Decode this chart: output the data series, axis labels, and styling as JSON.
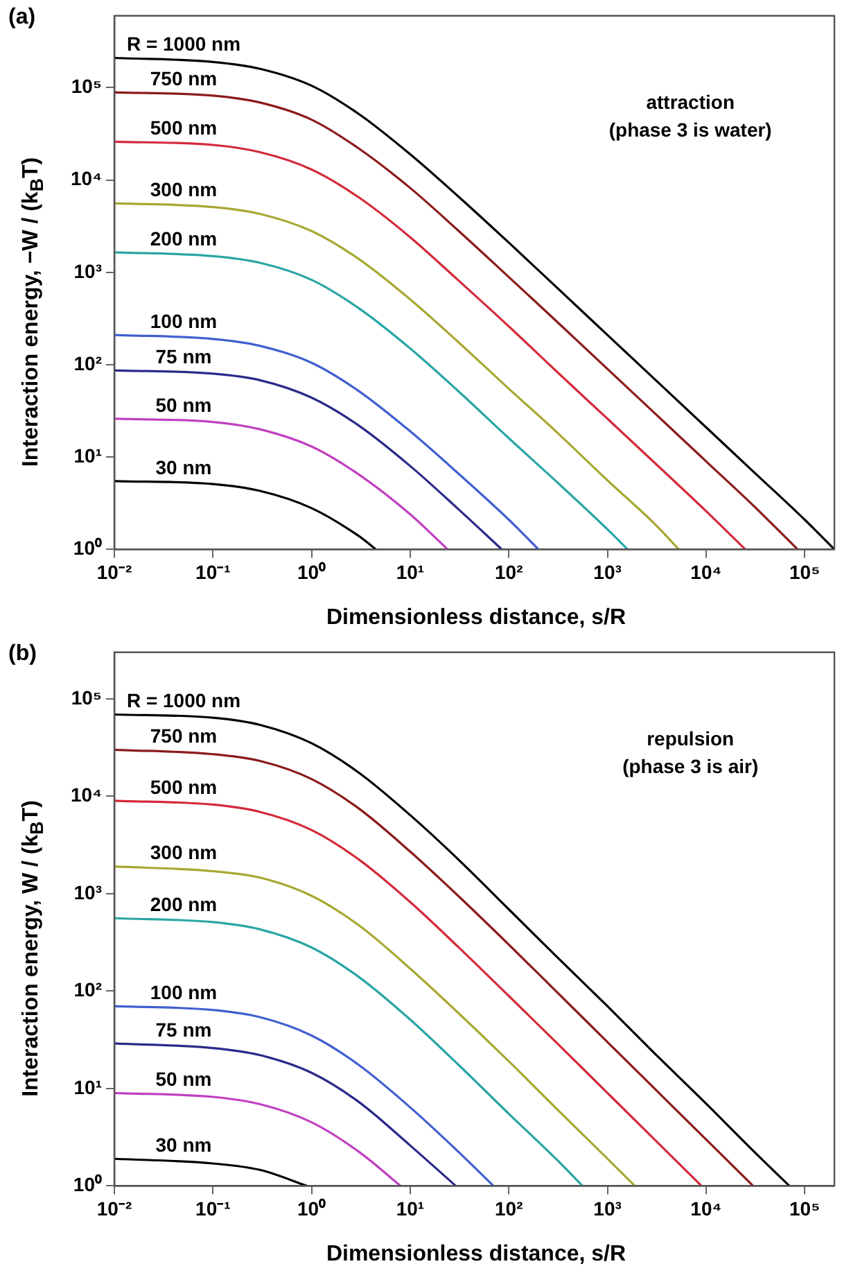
{
  "chart_data": [
    {
      "type": "line",
      "title": "(a)",
      "xlabel": "Dimensionless distance, s/R",
      "ylabel": "Interaction energy, −W / (k$_{B}$T)",
      "log": "xy",
      "xlim": [
        0.01,
        200000
      ],
      "ylim": [
        1,
        600000
      ],
      "xticks": [
        {
          "value": 0.01,
          "label": "10⁻²"
        },
        {
          "value": 0.1,
          "label": "10⁻¹"
        },
        {
          "value": 1,
          "label": "10⁰"
        },
        {
          "value": 10,
          "label": "10¹"
        },
        {
          "value": 100,
          "label": "10²"
        },
        {
          "value": 1000,
          "label": "10³"
        },
        {
          "value": 10000,
          "label": "10⁴"
        },
        {
          "value": 100000,
          "label": "10⁵"
        }
      ],
      "yticks": [
        {
          "value": 1,
          "label": "10⁰"
        },
        {
          "value": 10,
          "label": "10¹"
        },
        {
          "value": 100,
          "label": "10²"
        },
        {
          "value": 1000,
          "label": "10³"
        },
        {
          "value": 10000,
          "label": "10⁴"
        },
        {
          "value": 100000,
          "label": "10⁵"
        }
      ],
      "annotations": [
        "attraction",
        "(phase 3 is water)"
      ],
      "series": [
        {
          "name": "R = 1000 nm",
          "color": "#000000",
          "x": [
            0.01,
            0.1,
            0.3,
            1,
            3,
            10,
            30,
            100,
            300,
            1000,
            3000,
            10000,
            30000,
            100000,
            200000
          ],
          "values": [
            210000,
            190000,
            160000,
            105000,
            52000,
            19000,
            6800,
            2100,
            700,
            210,
            70,
            21,
            7,
            2.1,
            1
          ]
        },
        {
          "name": "750 nm",
          "color": "#8b1a1a",
          "x": [
            0.01,
            0.1,
            0.3,
            1,
            3,
            10,
            30,
            100,
            300,
            1000,
            3000,
            10000,
            30000,
            85000
          ],
          "values": [
            89000,
            82000,
            69000,
            45000,
            22000,
            8200,
            2900,
            890,
            300,
            90,
            30,
            9,
            3,
            1
          ]
        },
        {
          "name": "500 nm",
          "color": "#d42a3a",
          "x": [
            0.01,
            0.1,
            0.3,
            1,
            3,
            10,
            30,
            100,
            300,
            1000,
            3000,
            10000,
            25000
          ],
          "values": [
            26000,
            24000,
            20000,
            13000,
            6500,
            2400,
            840,
            260,
            86,
            26,
            8.7,
            2.6,
            1
          ]
        },
        {
          "name": "300 nm",
          "color": "#a8a832",
          "x": [
            0.01,
            0.1,
            0.3,
            1,
            3,
            10,
            30,
            100,
            300,
            1000,
            3000,
            5300
          ],
          "values": [
            5600,
            5100,
            4300,
            2800,
            1400,
            510,
            180,
            55,
            19,
            5.6,
            1.9,
            1
          ]
        },
        {
          "name": "200 nm",
          "color": "#2aa5a5",
          "x": [
            0.01,
            0.1,
            0.3,
            1,
            3,
            10,
            30,
            100,
            300,
            1000,
            1600
          ],
          "values": [
            1650,
            1500,
            1270,
            830,
            410,
            150,
            53,
            16,
            5.5,
            1.65,
            1
          ]
        },
        {
          "name": "100 nm",
          "color": "#4060d0",
          "x": [
            0.01,
            0.1,
            0.3,
            1,
            3,
            10,
            30,
            100,
            200
          ],
          "values": [
            210,
            190,
            160,
            105,
            52,
            19,
            6.8,
            2.1,
            1
          ]
        },
        {
          "name": "75 nm",
          "color": "#2a2a8a",
          "x": [
            0.01,
            0.1,
            0.3,
            1,
            3,
            10,
            30,
            85
          ],
          "values": [
            87,
            80,
            68,
            44,
            22,
            8,
            2.8,
            1
          ]
        },
        {
          "name": "50 nm",
          "color": "#c040c0",
          "x": [
            0.01,
            0.1,
            0.3,
            1,
            3,
            10,
            24
          ],
          "values": [
            26,
            24,
            20,
            13,
            6.5,
            2.4,
            1
          ]
        },
        {
          "name": "30 nm",
          "color": "#000000",
          "x": [
            0.01,
            0.1,
            0.3,
            1,
            3,
            4.5
          ],
          "values": [
            5.5,
            5.1,
            4.3,
            2.8,
            1.4,
            1
          ]
        }
      ]
    },
    {
      "type": "line",
      "title": "(b)",
      "xlabel": "Dimensionless distance, s/R",
      "ylabel": "Interaction energy, W / (k$_{B}$T)",
      "log": "xy",
      "xlim": [
        0.01,
        200000
      ],
      "ylim": [
        1,
        300000
      ],
      "xticks": [
        {
          "value": 0.01,
          "label": "10⁻²"
        },
        {
          "value": 0.1,
          "label": "10⁻¹"
        },
        {
          "value": 1,
          "label": "10⁰"
        },
        {
          "value": 10,
          "label": "10¹"
        },
        {
          "value": 100,
          "label": "10²"
        },
        {
          "value": 1000,
          "label": "10³"
        },
        {
          "value": 10000,
          "label": "10⁴"
        },
        {
          "value": 100000,
          "label": "10⁵"
        }
      ],
      "yticks": [
        {
          "value": 1,
          "label": "10⁰"
        },
        {
          "value": 10,
          "label": "10¹"
        },
        {
          "value": 100,
          "label": "10²"
        },
        {
          "value": 1000,
          "label": "10³"
        },
        {
          "value": 10000,
          "label": "10⁴"
        },
        {
          "value": 100000,
          "label": "10⁵"
        }
      ],
      "annotations": [
        "repulsion",
        "(phase 3 is air)"
      ],
      "series": [
        {
          "name": "R = 1000 nm",
          "color": "#000000",
          "x": [
            0.01,
            0.1,
            0.3,
            1,
            3,
            10,
            30,
            100,
            300,
            1000,
            3000,
            10000,
            30000,
            70000
          ],
          "values": [
            69000,
            64000,
            54000,
            35000,
            17500,
            6400,
            2300,
            690,
            230,
            70,
            23,
            7,
            2.3,
            1
          ]
        },
        {
          "name": "750 nm",
          "color": "#8b1a1a",
          "x": [
            0.01,
            0.1,
            0.3,
            1,
            3,
            10,
            30,
            100,
            300,
            1000,
            3000,
            10000,
            30000
          ],
          "values": [
            30000,
            27000,
            23000,
            15000,
            7500,
            2700,
            970,
            300,
            100,
            30,
            10,
            3,
            1
          ]
        },
        {
          "name": "500 nm",
          "color": "#d42a3a",
          "x": [
            0.01,
            0.1,
            0.3,
            1,
            3,
            10,
            30,
            100,
            300,
            1000,
            3000,
            9000
          ],
          "values": [
            9000,
            8200,
            6900,
            4500,
            2250,
            820,
            290,
            89,
            30,
            9,
            3,
            1
          ]
        },
        {
          "name": "300 nm",
          "color": "#a8a832",
          "x": [
            0.01,
            0.1,
            0.3,
            1,
            3,
            10,
            30,
            100,
            300,
            1000,
            1900
          ],
          "values": [
            1900,
            1700,
            1460,
            950,
            475,
            170,
            61,
            19,
            6.3,
            1.9,
            1
          ]
        },
        {
          "name": "200 nm",
          "color": "#2aa5a5",
          "x": [
            0.01,
            0.1,
            0.3,
            1,
            3,
            10,
            30,
            100,
            300,
            560
          ],
          "values": [
            560,
            510,
            430,
            280,
            140,
            51,
            18,
            5.5,
            1.9,
            1
          ]
        },
        {
          "name": "100 nm",
          "color": "#4060d0",
          "x": [
            0.01,
            0.1,
            0.3,
            1,
            3,
            10,
            30,
            70
          ],
          "values": [
            70,
            64,
            54,
            35,
            17.5,
            6.4,
            2.3,
            1
          ]
        },
        {
          "name": "75 nm",
          "color": "#2a2a8a",
          "x": [
            0.01,
            0.1,
            0.3,
            1,
            3,
            10,
            29
          ],
          "values": [
            29,
            26,
            22,
            14.5,
            7.3,
            2.6,
            1
          ]
        },
        {
          "name": "50 nm",
          "color": "#c040c0",
          "x": [
            0.01,
            0.1,
            0.3,
            1,
            3,
            8
          ],
          "values": [
            9,
            8.2,
            6.9,
            4.5,
            2.25,
            1
          ]
        },
        {
          "name": "30 nm",
          "color": "#000000",
          "x": [
            0.01,
            0.1,
            0.3,
            0.9
          ],
          "values": [
            1.9,
            1.7,
            1.46,
            1
          ]
        }
      ]
    }
  ]
}
